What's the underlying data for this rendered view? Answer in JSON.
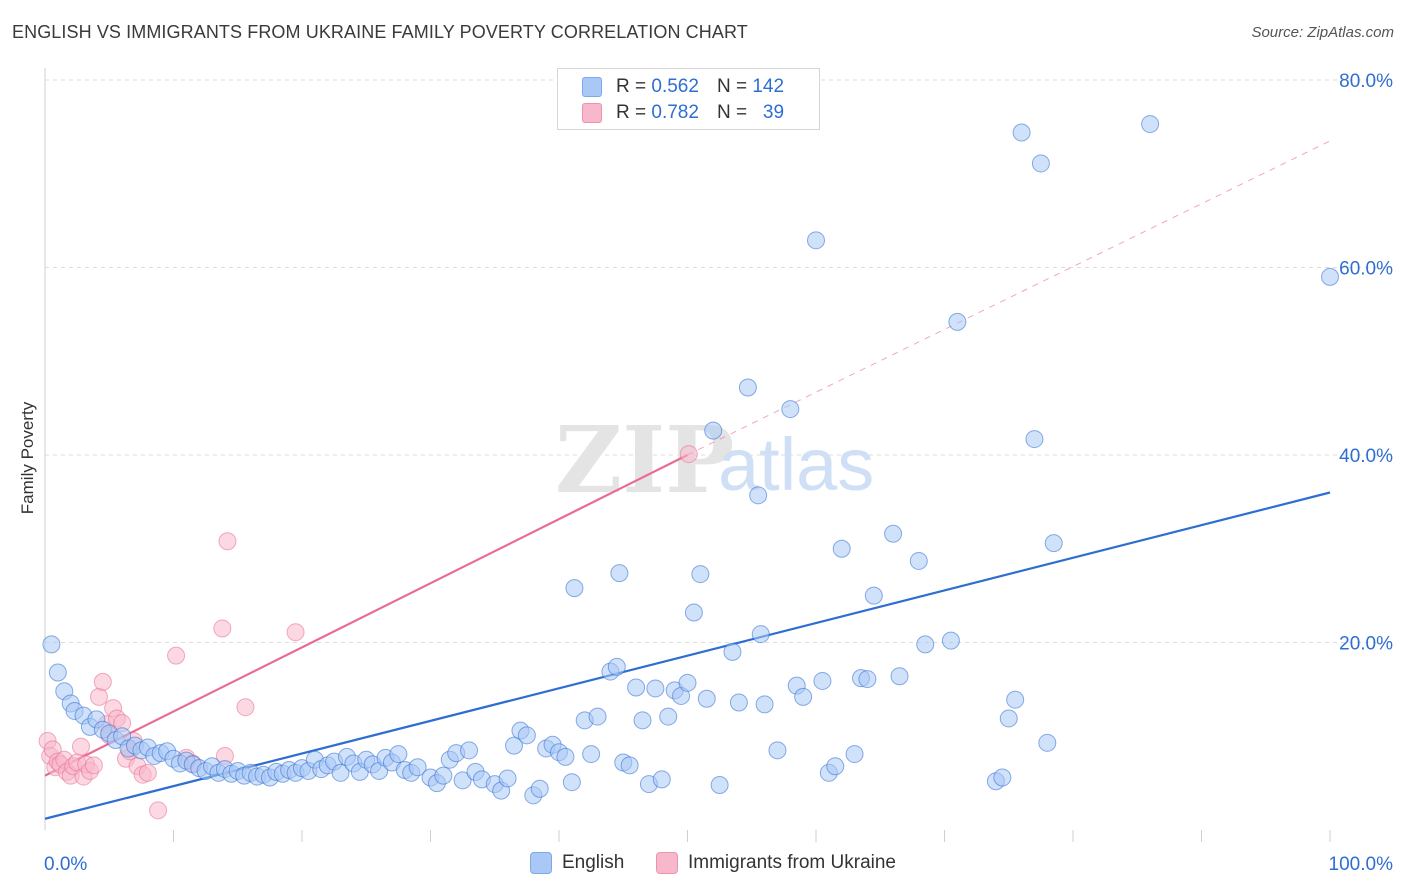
{
  "header": {
    "title": "ENGLISH VS IMMIGRANTS FROM UKRAINE FAMILY POVERTY CORRELATION CHART",
    "source": "Source: ZipAtlas.com"
  },
  "watermark": {
    "zip": "ZIP",
    "atlas": "atlas"
  },
  "legend_top": {
    "rows": [
      {
        "r_label": "R =",
        "r_value": "0.562",
        "n_label": "N =",
        "n_value": "142",
        "color": "#a9c8f5"
      },
      {
        "r_label": "R =",
        "r_value": "0.782",
        "n_label": "N =",
        "n_value": "39",
        "color": "#f7b8cb"
      }
    ]
  },
  "legend_bottom": {
    "items": [
      {
        "label": "English",
        "color": "#a9c8f5"
      },
      {
        "label": "Immigrants from Ukraine",
        "color": "#f7b8cb"
      }
    ]
  },
  "chart_data": {
    "type": "scatter",
    "title": "ENGLISH VS IMMIGRANTS FROM UKRAINE FAMILY POVERTY CORRELATION CHART",
    "xlabel": "",
    "ylabel": "Family Poverty",
    "xlim": [
      0,
      100
    ],
    "ylim": [
      0,
      80
    ],
    "x_tick_labels": [
      "0.0%",
      "100.0%"
    ],
    "y_tick_labels": [
      "20.0%",
      "40.0%",
      "60.0%",
      "80.0%"
    ],
    "y_ticks": [
      20,
      40,
      60,
      80
    ],
    "grid": true,
    "colors": {
      "english": "#2f6ed1",
      "ukraine": "#e86b93",
      "axis_text": "#2f6ed1"
    },
    "series": [
      {
        "name": "English",
        "color": "#2f6ed1",
        "fill": "#a9c8f5",
        "trend": {
          "x0": 0,
          "y0": 1.2,
          "x1": 100,
          "y1": 36.0,
          "dashed_to": null
        },
        "points": [
          [
            0.5,
            19.8
          ],
          [
            1,
            16.8
          ],
          [
            1.5,
            14.8
          ],
          [
            2,
            13.5
          ],
          [
            2.3,
            12.7
          ],
          [
            3,
            12.2
          ],
          [
            3.5,
            11.0
          ],
          [
            4,
            11.8
          ],
          [
            4.5,
            10.7
          ],
          [
            5,
            10.3
          ],
          [
            5.5,
            9.6
          ],
          [
            6,
            10.0
          ],
          [
            6.5,
            8.7
          ],
          [
            7,
            9.0
          ],
          [
            7.5,
            8.5
          ],
          [
            8,
            8.8
          ],
          [
            8.5,
            7.9
          ],
          [
            9,
            8.2
          ],
          [
            9.5,
            8.4
          ],
          [
            10,
            7.6
          ],
          [
            10.5,
            7.1
          ],
          [
            11,
            7.4
          ],
          [
            11.5,
            7.0
          ],
          [
            12,
            6.6
          ],
          [
            12.5,
            6.3
          ],
          [
            13,
            6.8
          ],
          [
            13.5,
            6.1
          ],
          [
            14,
            6.5
          ],
          [
            14.5,
            6.0
          ],
          [
            15,
            6.3
          ],
          [
            15.5,
            5.8
          ],
          [
            16,
            6.1
          ],
          [
            16.5,
            5.7
          ],
          [
            17,
            5.9
          ],
          [
            17.5,
            5.6
          ],
          [
            18,
            6.2
          ],
          [
            18.5,
            6.0
          ],
          [
            19,
            6.4
          ],
          [
            19.5,
            6.1
          ],
          [
            20,
            6.6
          ],
          [
            20.5,
            6.3
          ],
          [
            21,
            7.5
          ],
          [
            21.5,
            6.5
          ],
          [
            22,
            6.9
          ],
          [
            22.5,
            7.3
          ],
          [
            23,
            6.1
          ],
          [
            23.5,
            7.8
          ],
          [
            24,
            7.1
          ],
          [
            24.5,
            6.2
          ],
          [
            25,
            7.5
          ],
          [
            25.5,
            7.0
          ],
          [
            26,
            6.3
          ],
          [
            26.5,
            7.7
          ],
          [
            27,
            7.2
          ],
          [
            27.5,
            8.1
          ],
          [
            28,
            6.4
          ],
          [
            28.5,
            6.1
          ],
          [
            29,
            6.7
          ],
          [
            30,
            5.6
          ],
          [
            30.5,
            5.0
          ],
          [
            31,
            5.8
          ],
          [
            31.5,
            7.5
          ],
          [
            32,
            8.2
          ],
          [
            32.5,
            5.3
          ],
          [
            33,
            8.5
          ],
          [
            33.5,
            6.2
          ],
          [
            34,
            5.4
          ],
          [
            35,
            4.9
          ],
          [
            35.5,
            4.2
          ],
          [
            36,
            5.5
          ],
          [
            36.5,
            9.0
          ],
          [
            37,
            10.6
          ],
          [
            37.5,
            10.1
          ],
          [
            38,
            3.7
          ],
          [
            38.5,
            4.4
          ],
          [
            39,
            8.7
          ],
          [
            39.5,
            9.1
          ],
          [
            40,
            8.3
          ],
          [
            40.5,
            7.8
          ],
          [
            41,
            5.1
          ],
          [
            41.2,
            25.8
          ],
          [
            42,
            11.7
          ],
          [
            42.5,
            8.1
          ],
          [
            43,
            12.1
          ],
          [
            44,
            16.9
          ],
          [
            44.5,
            17.4
          ],
          [
            44.7,
            27.4
          ],
          [
            45,
            7.2
          ],
          [
            45.5,
            6.9
          ],
          [
            46,
            15.2
          ],
          [
            46.5,
            11.7
          ],
          [
            47,
            4.9
          ],
          [
            47.5,
            15.1
          ],
          [
            48,
            5.4
          ],
          [
            48.5,
            12.1
          ],
          [
            49,
            14.9
          ],
          [
            49.5,
            14.3
          ],
          [
            50,
            15.7
          ],
          [
            50.5,
            23.2
          ],
          [
            51,
            27.3
          ],
          [
            51.5,
            14.0
          ],
          [
            52,
            42.6
          ],
          [
            52.5,
            4.8
          ],
          [
            53.5,
            19.0
          ],
          [
            54,
            13.6
          ],
          [
            54.7,
            47.2
          ],
          [
            55.5,
            35.7
          ],
          [
            55.7,
            20.9
          ],
          [
            56,
            13.4
          ],
          [
            57,
            8.5
          ],
          [
            58,
            44.9
          ],
          [
            58.5,
            15.4
          ],
          [
            59,
            14.2
          ],
          [
            60,
            62.9
          ],
          [
            60.5,
            15.9
          ],
          [
            61,
            6.1
          ],
          [
            61.5,
            6.8
          ],
          [
            62,
            30.0
          ],
          [
            63,
            8.1
          ],
          [
            63.5,
            16.2
          ],
          [
            64,
            16.1
          ],
          [
            64.5,
            25.0
          ],
          [
            66,
            31.6
          ],
          [
            66.5,
            16.4
          ],
          [
            68,
            28.7
          ],
          [
            68.5,
            19.8
          ],
          [
            70.5,
            20.2
          ],
          [
            71,
            54.2
          ],
          [
            74,
            5.2
          ],
          [
            74.5,
            5.6
          ],
          [
            75,
            11.9
          ],
          [
            75.5,
            13.9
          ],
          [
            76,
            74.4
          ],
          [
            77,
            41.7
          ],
          [
            77.5,
            71.1
          ],
          [
            78,
            9.3
          ],
          [
            78.5,
            30.6
          ],
          [
            86,
            75.3
          ],
          [
            100,
            59.0
          ]
        ]
      },
      {
        "name": "Immigrants from Ukraine",
        "color": "#e86b93",
        "fill": "#f7b8cb",
        "trend": {
          "x0": 0,
          "y0": 5.8,
          "x1": 50,
          "y1": 40.0,
          "dashed_to": [
            100,
            73.5
          ]
        },
        "points": [
          [
            0.2,
            9.5
          ],
          [
            0.4,
            7.9
          ],
          [
            0.6,
            8.6
          ],
          [
            0.8,
            6.7
          ],
          [
            1.0,
            7.3
          ],
          [
            1.2,
            7.0
          ],
          [
            1.5,
            7.5
          ],
          [
            1.7,
            6.2
          ],
          [
            2.0,
            5.8
          ],
          [
            2.2,
            6.8
          ],
          [
            2.5,
            7.2
          ],
          [
            2.8,
            8.9
          ],
          [
            3.0,
            5.7
          ],
          [
            3.2,
            7.0
          ],
          [
            3.5,
            6.3
          ],
          [
            3.8,
            6.9
          ],
          [
            4.2,
            14.2
          ],
          [
            4.5,
            15.8
          ],
          [
            4.8,
            11.3
          ],
          [
            5.0,
            10.1
          ],
          [
            5.3,
            13.0
          ],
          [
            5.6,
            11.9
          ],
          [
            6.0,
            11.4
          ],
          [
            6.3,
            7.6
          ],
          [
            6.6,
            8.4
          ],
          [
            6.9,
            9.5
          ],
          [
            7.2,
            6.8
          ],
          [
            7.6,
            5.9
          ],
          [
            8.0,
            6.1
          ],
          [
            8.8,
            2.1
          ],
          [
            10.2,
            18.6
          ],
          [
            11.0,
            7.7
          ],
          [
            11.5,
            7.1
          ],
          [
            13.8,
            21.5
          ],
          [
            14.0,
            7.9
          ],
          [
            14.2,
            30.8
          ],
          [
            15.6,
            13.1
          ],
          [
            19.5,
            21.1
          ],
          [
            50.1,
            40.1
          ]
        ]
      }
    ]
  }
}
